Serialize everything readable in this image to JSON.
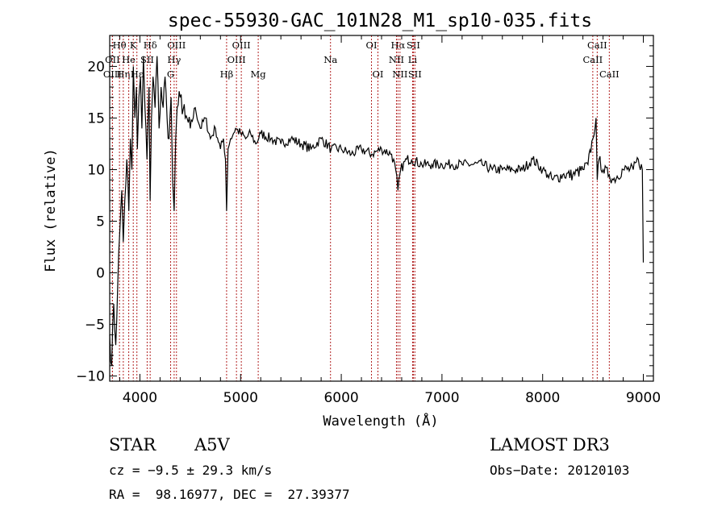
{
  "chart_data": {
    "type": "line",
    "title": "spec-55930-GAC_101N28_M1_sp10-035.fits",
    "xlabel": "Wavelength (Å)",
    "ylabel": "Flux (relative)",
    "xlim": [
      3700,
      9100
    ],
    "ylim": [
      -10.5,
      23
    ],
    "x_ticks": [
      4000,
      5000,
      6000,
      7000,
      8000,
      9000
    ],
    "y_ticks": [
      -10,
      -5,
      0,
      5,
      10,
      15,
      20
    ],
    "series": [
      {
        "name": "flux",
        "x": [
          3700,
          3720,
          3740,
          3760,
          3780,
          3800,
          3820,
          3835,
          3850,
          3870,
          3890,
          3905,
          3920,
          3935,
          3950,
          3965,
          3975,
          3990,
          4005,
          4020,
          4035,
          4050,
          4070,
          4090,
          4101,
          4115,
          4130,
          4150,
          4170,
          4190,
          4210,
          4230,
          4250,
          4270,
          4290,
          4310,
          4325,
          4340,
          4355,
          4370,
          4400,
          4450,
          4500,
          4550,
          4600,
          4650,
          4700,
          4750,
          4800,
          4830,
          4850,
          4861,
          4875,
          4900,
          4950,
          5000,
          5050,
          5100,
          5150,
          5200,
          5300,
          5400,
          5500,
          5600,
          5700,
          5800,
          5900,
          6000,
          6100,
          6200,
          6300,
          6400,
          6500,
          6540,
          6563,
          6590,
          6650,
          6700,
          6800,
          6900,
          7000,
          7100,
          7200,
          7300,
          7400,
          7500,
          7600,
          7700,
          7800,
          7900,
          8000,
          8050,
          8100,
          8200,
          8300,
          8400,
          8450,
          8498,
          8530,
          8542,
          8560,
          8600,
          8662,
          8700,
          8800,
          8900,
          8950,
          8990,
          9000
        ],
        "values": [
          -6,
          -9,
          -3,
          -7,
          -1,
          4,
          8,
          3,
          7,
          11,
          6,
          13,
          10,
          20,
          15,
          18,
          12,
          17,
          19,
          14,
          21,
          16,
          11,
          18,
          7,
          15,
          19,
          16,
          21,
          14,
          18,
          16,
          19,
          15,
          13,
          17,
          9,
          6,
          13,
          16,
          17,
          15,
          14,
          16,
          14,
          15,
          13,
          14,
          12,
          13,
          11,
          6,
          12,
          13,
          14,
          13.5,
          13,
          13.5,
          12.5,
          13.5,
          13,
          12.5,
          13,
          12.5,
          12,
          13,
          12,
          12,
          11.5,
          12,
          11.5,
          12,
          11.5,
          10,
          8,
          10,
          11,
          11,
          10.5,
          10.5,
          10.5,
          10.5,
          10.5,
          10.5,
          10.5,
          10,
          10,
          10,
          10,
          11,
          10,
          9.5,
          9,
          9.5,
          9.5,
          10,
          10.5,
          13,
          15,
          9,
          11,
          10,
          9.5,
          9,
          10,
          10,
          11,
          10,
          1
        ]
      }
    ],
    "lines": [
      {
        "label": "Hθ",
        "x": 3797,
        "row": 0
      },
      {
        "label": "OII",
        "x": 3727,
        "row": 1
      },
      {
        "label": "OIII",
        "x": 3727,
        "row": 2
      },
      {
        "label": "Hη",
        "x": 3835,
        "row": 2
      },
      {
        "label": "K",
        "x": 3934,
        "row": 0
      },
      {
        "label": "He",
        "x": 3889,
        "row": 1
      },
      {
        "label": "Hε",
        "x": 3970,
        "row": 2
      },
      {
        "label": "SII",
        "x": 4072,
        "row": 1
      },
      {
        "label": "Hδ",
        "x": 4102,
        "row": 0
      },
      {
        "label": "Hγ",
        "x": 4340,
        "row": 1
      },
      {
        "label": "G",
        "x": 4305,
        "row": 2
      },
      {
        "label": "OIII",
        "x": 4363,
        "row": 0
      },
      {
        "label": "Hβ",
        "x": 4861,
        "row": 2
      },
      {
        "label": "OIII",
        "x": 4959,
        "row": 1
      },
      {
        "label": "OIII",
        "x": 5007,
        "row": 0
      },
      {
        "label": "Mg",
        "x": 5175,
        "row": 2
      },
      {
        "label": "Na",
        "x": 5893,
        "row": 1
      },
      {
        "label": "OI",
        "x": 6300,
        "row": 0
      },
      {
        "label": "OI",
        "x": 6364,
        "row": 2
      },
      {
        "label": "Hα",
        "x": 6563,
        "row": 0
      },
      {
        "label": "NII",
        "x": 6548,
        "row": 1
      },
      {
        "label": "NII",
        "x": 6583,
        "row": 2
      },
      {
        "label": "SII",
        "x": 6716,
        "row": 0
      },
      {
        "label": "Li",
        "x": 6708,
        "row": 1
      },
      {
        "label": "SII",
        "x": 6731,
        "row": 2
      },
      {
        "label": "CaII",
        "x": 8542,
        "row": 0
      },
      {
        "label": "CaII",
        "x": 8498,
        "row": 1
      },
      {
        "label": "CaII",
        "x": 8662,
        "row": 2
      }
    ]
  },
  "info": {
    "class": "STAR",
    "subclass": "A5V",
    "survey": "LAMOST DR3",
    "cz": "cz = −9.5 ± 29.3 km/s",
    "obs_date": "Obs−Date: 20120103",
    "radec": "RA =  98.16977, DEC =  27.39377"
  },
  "colors": {
    "spectrum": "#000000",
    "line_marker": "#b22222",
    "axis": "#000000"
  }
}
